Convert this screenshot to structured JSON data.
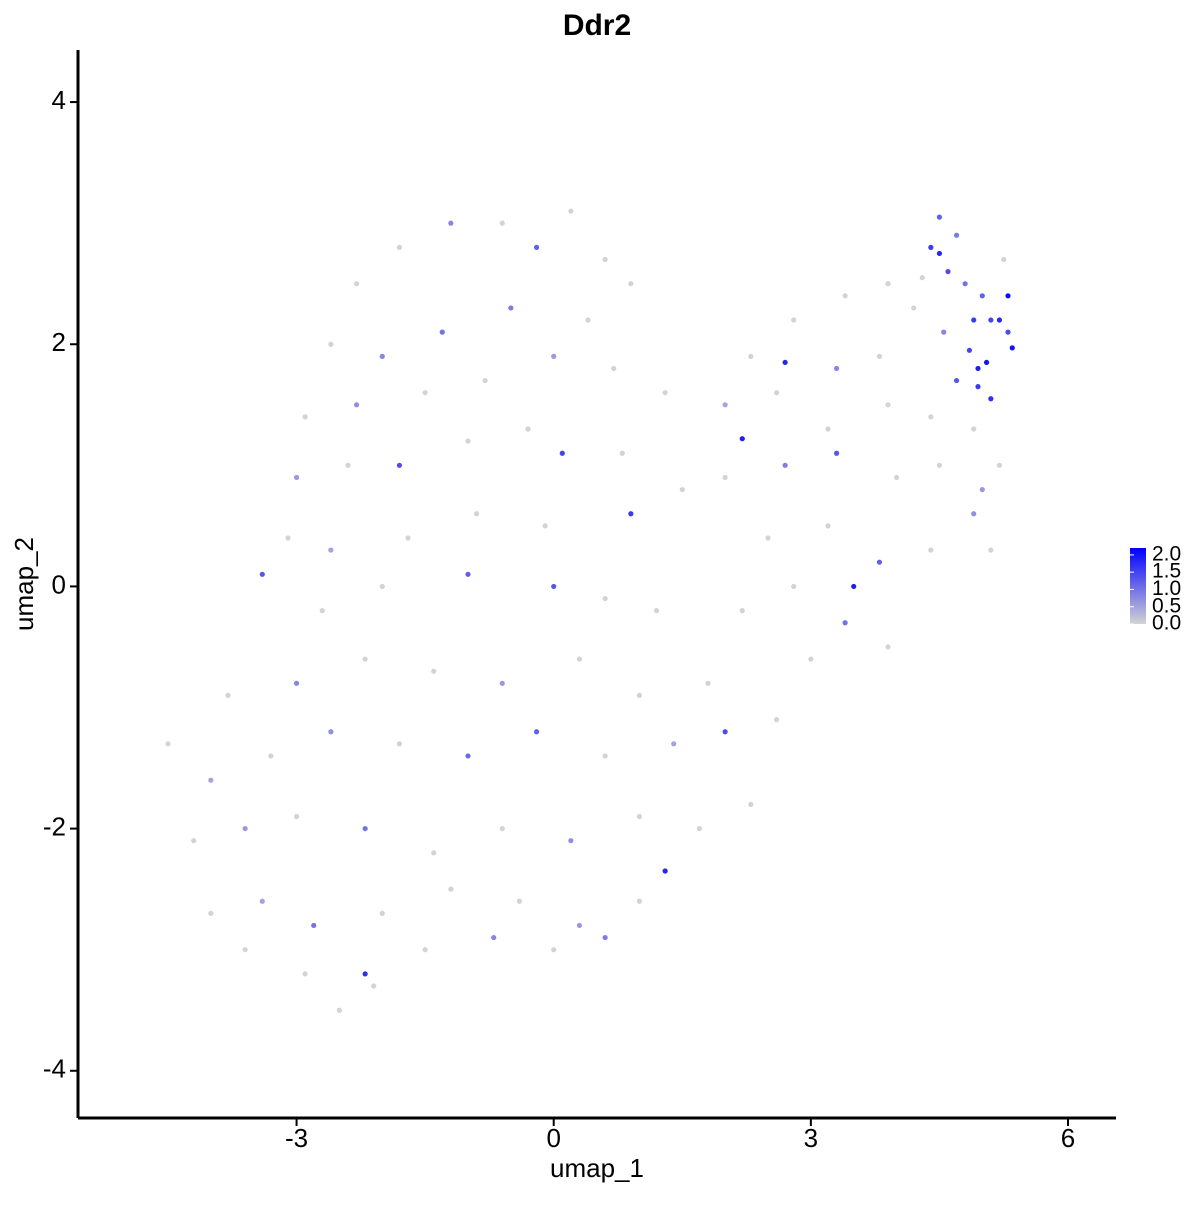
{
  "chart_data": {
    "type": "scatter",
    "title": "Ddr2",
    "x_label": "umap_1",
    "y_label": "umap_2",
    "xlim": [
      -5.55,
      6.56
    ],
    "ylim": [
      -4.39,
      4.43
    ],
    "xticks": [
      -3,
      0,
      3,
      6
    ],
    "yticks": [
      -4,
      -2,
      0,
      2,
      4
    ],
    "low_color": "#d3d3d3",
    "high_color": "#0000ff",
    "colorlim": [
      0,
      2.2
    ],
    "colorticks": [
      {
        "value": 0,
        "label": "0.0"
      },
      {
        "value": 0.5,
        "label": "0.5"
      },
      {
        "value": 1,
        "label": "1.0"
      },
      {
        "value": 1.5,
        "label": "1.5"
      },
      {
        "value": 2,
        "label": "2.0"
      }
    ],
    "x": [
      -2.3,
      -1.8,
      -1.2,
      -0.6,
      0.2,
      0.6,
      -0.2,
      -2.6,
      -2.0,
      -1.3,
      -0.5,
      0.4,
      0.9,
      -2.9,
      -2.3,
      -1.5,
      -0.8,
      0.0,
      0.7,
      1.3,
      -3.0,
      -2.4,
      -1.8,
      -1.0,
      -0.3,
      0.1,
      0.8,
      -3.1,
      -2.6,
      -1.7,
      -0.9,
      -0.1,
      0.9,
      1.5,
      -3.4,
      -2.7,
      -2.0,
      -1.0,
      0.0,
      0.6,
      1.2,
      -3.8,
      -3.0,
      -2.2,
      -1.4,
      -0.6,
      0.3,
      1.0,
      1.8,
      -4.5,
      -4.0,
      -3.3,
      -2.6,
      -1.8,
      -1.0,
      -0.2,
      0.6,
      1.4,
      2.0,
      2.6,
      -4.2,
      -3.6,
      -3.0,
      -2.2,
      -1.4,
      -0.6,
      0.2,
      1.0,
      1.7,
      2.3,
      -4.0,
      -3.4,
      -2.8,
      -2.0,
      -1.2,
      -0.4,
      0.3,
      1.0,
      1.3,
      -3.6,
      -2.9,
      -2.2,
      -1.5,
      -0.7,
      0.0,
      0.6,
      -2.5,
      -2.1,
      2.2,
      2.8,
      3.4,
      3.9,
      3.0,
      2.5,
      3.2,
      3.8,
      4.4,
      4.9,
      2.0,
      2.7,
      3.3,
      4.0,
      4.5,
      5.0,
      5.1,
      2.0,
      2.6,
      3.2,
      3.9,
      4.4,
      4.9,
      5.2,
      2.3,
      2.7,
      3.3,
      3.8,
      2.8,
      3.4,
      3.9,
      2.2,
      3.5,
      4.4,
      4.5,
      4.6,
      4.7,
      4.8,
      4.9,
      5.0,
      5.1,
      5.2,
      5.3,
      5.3,
      5.35,
      4.85,
      4.95,
      5.05,
      5.1,
      4.55,
      4.3,
      4.2,
      4.7,
      4.95,
      4.5,
      5.25
    ],
    "values": [
      2.5,
      2.8,
      3.0,
      3.0,
      3.1,
      2.7,
      2.8,
      2.0,
      1.9,
      2.1,
      2.3,
      2.2,
      2.5,
      1.4,
      1.5,
      1.6,
      1.7,
      1.9,
      1.8,
      1.6,
      0.9,
      1.0,
      1.0,
      1.2,
      1.3,
      1.1,
      1.1,
      0.4,
      0.3,
      0.4,
      0.6,
      0.5,
      0.6,
      0.8,
      0.1,
      -0.2,
      0.0,
      0.1,
      0.0,
      -0.1,
      -0.2,
      -0.9,
      -0.8,
      -0.6,
      -0.7,
      -0.8,
      -0.6,
      -0.9,
      -0.8,
      -1.3,
      -1.6,
      -1.4,
      -1.2,
      -1.3,
      -1.4,
      -1.2,
      -1.4,
      -1.3,
      -1.2,
      -1.1,
      -2.1,
      -2.0,
      -1.9,
      -2.0,
      -2.2,
      -2.0,
      -2.1,
      -1.9,
      -2.0,
      -1.8,
      -2.7,
      -2.6,
      -2.8,
      -2.7,
      -2.5,
      -2.6,
      -2.8,
      -2.6,
      -2.35,
      -3.0,
      -3.2,
      -3.2,
      -3.0,
      -2.9,
      -3.0,
      -2.9,
      -3.5,
      -3.3,
      -0.2,
      0.0,
      -0.3,
      -0.5,
      -0.6,
      0.4,
      0.5,
      0.2,
      0.3,
      0.6,
      0.9,
      1.0,
      1.1,
      0.9,
      1.0,
      0.8,
      0.3,
      1.5,
      1.6,
      1.3,
      1.5,
      1.4,
      1.3,
      1.0,
      1.9,
      1.85,
      1.8,
      1.9,
      2.2,
      2.4,
      2.5,
      1.22,
      0.0,
      2.8,
      3.05,
      2.6,
      2.9,
      2.5,
      2.2,
      2.4,
      2.2,
      2.2,
      2.1,
      2.4,
      1.97,
      1.95,
      1.8,
      1.85,
      1.55,
      2.1,
      2.55,
      2.3,
      1.7,
      1.65,
      2.75,
      2.7
    ],
    "expression": [
      0,
      0,
      0.8,
      0,
      0,
      0,
      1.2,
      0,
      0.8,
      1.0,
      0.9,
      0,
      0,
      0,
      0.7,
      0,
      0,
      0.6,
      0,
      0,
      0.6,
      0,
      1.4,
      0,
      0,
      1.5,
      0,
      0,
      0.5,
      0,
      0,
      0,
      1.6,
      0,
      1.3,
      0,
      0,
      1.2,
      1.3,
      0,
      0,
      0,
      0.8,
      0,
      0,
      0.6,
      0,
      0,
      0,
      0,
      0.5,
      0,
      0.7,
      0,
      1.1,
      1.2,
      0,
      0.5,
      1.4,
      0,
      0,
      0.6,
      0,
      1.0,
      0,
      0,
      0.7,
      0,
      0,
      0,
      0,
      0.5,
      1.0,
      0,
      0,
      0,
      0.6,
      0,
      1.8,
      0,
      0,
      1.7,
      0,
      0.8,
      0,
      0.9,
      0,
      0,
      0,
      0,
      1.0,
      0,
      0,
      0,
      0,
      1.2,
      0,
      0.7,
      0,
      0.9,
      1.3,
      0,
      0,
      0.6,
      0,
      0.5,
      0,
      0,
      0,
      0,
      0,
      0,
      0,
      1.8,
      0.8,
      0,
      0,
      0,
      0,
      1.9,
      1.9,
      1.6,
      1.2,
      1.4,
      0.9,
      1.0,
      1.6,
      1.2,
      1.5,
      1.8,
      1.4,
      2.1,
      2.0,
      1.5,
      1.9,
      2.0,
      1.7,
      0.8,
      0,
      0,
      1.3,
      1.6,
      1.8,
      0
    ]
  }
}
